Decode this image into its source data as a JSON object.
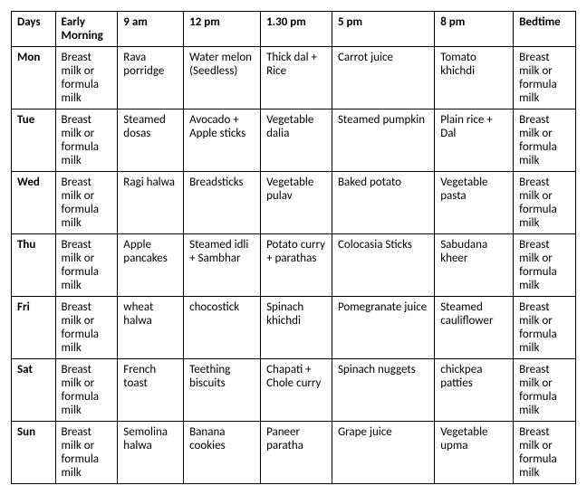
{
  "table": {
    "columns": [
      {
        "key": "day",
        "label": "Days"
      },
      {
        "key": "em",
        "label": "Early Morning"
      },
      {
        "key": "t9",
        "label": "9 am"
      },
      {
        "key": "t12",
        "label": "12 pm"
      },
      {
        "key": "t130",
        "label": "1.30 pm"
      },
      {
        "key": "t5",
        "label": "5 pm"
      },
      {
        "key": "t8",
        "label": "8 pm"
      },
      {
        "key": "bed",
        "label": "Bedtime"
      }
    ],
    "rows": [
      {
        "day": "Mon",
        "em": "Breast milk or formula milk",
        "t9": "Rava porridge",
        "t12": "Water melon (Seedless)",
        "t130": "Thick dal + Rice",
        "t5": "Carrot juice",
        "t8": "Tomato khichdi",
        "bed": "Breast milk or formula milk"
      },
      {
        "day": "Tue",
        "em": "Breast milk or formula milk",
        "t9": "Steamed dosas",
        "t12": "Avocado + Apple sticks",
        "t130": "Vegetable dalia",
        "t5": "Steamed pumpkin",
        "t8": "Plain rice + Dal",
        "bed": "Breast milk or formula milk"
      },
      {
        "day": "Wed",
        "em": "Breast milk or formula milk",
        "t9": "Ragi halwa",
        "t12": "Breadsticks",
        "t130": "Vegetable pulav",
        "t5": "Baked potato",
        "t8": "Vegetable pasta",
        "bed": "Breast milk or formula milk"
      },
      {
        "day": "Thu",
        "em": "Breast milk or formula milk",
        "t9": "Apple pancakes",
        "t12": "Steamed idli + Sambhar",
        "t130": "Potato curry + parathas",
        "t5": "Colocasia Sticks",
        "t8": "Sabudana kheer",
        "bed": "Breast milk or formula milk"
      },
      {
        "day": "Fri",
        "em": "Breast milk or formula milk",
        "t9": "wheat halwa",
        "t12": "chocostick",
        "t130": "Spinach khichdi",
        "t5": "Pomegranate juice",
        "t8": "Steamed cauliflower",
        "bed": "Breast milk or formula milk"
      },
      {
        "day": "Sat",
        "em": "Breast milk or formula milk",
        "t9": "French toast",
        "t12": "Teething biscuits",
        "t130": "Chapati + Chole curry",
        "t5": "Spinach nuggets",
        "t8": "chickpea patties",
        "bed": "Breast milk or formula milk"
      },
      {
        "day": "Sun",
        "em": "Breast milk or formula milk",
        "t9": "Semolina halwa",
        "t12": "Banana cookies",
        "t130": "Paneer paratha",
        "t5": "Grape juice",
        "t8": "Vegetable upma",
        "bed": "Breast milk or formula milk"
      }
    ]
  }
}
